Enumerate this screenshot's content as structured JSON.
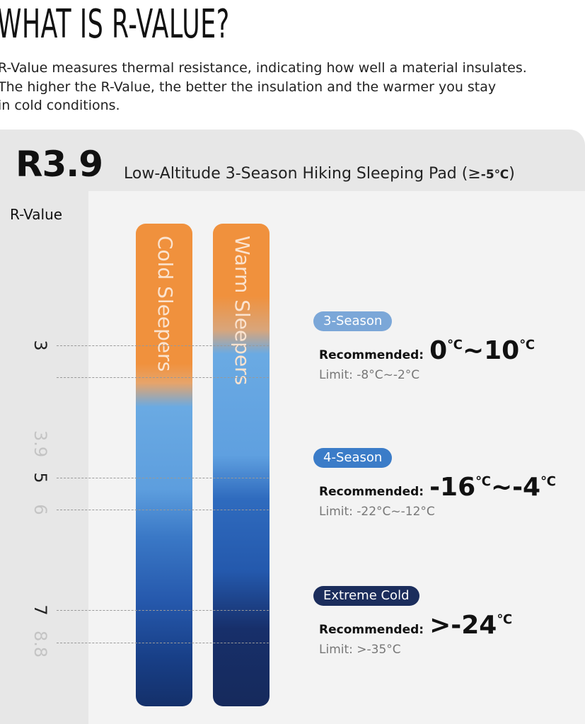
{
  "header": {
    "title": "WHAT IS R-VALUE?",
    "lines": [
      "R-Value measures thermal resistance, indicating how well a material insulates.",
      "The higher the R-Value, the better the insulation and the warmer you stay",
      "in cold conditions."
    ]
  },
  "card": {
    "badge": "R3.9",
    "subtitle": "Low-Altitude 3-Season Hiking Sleeping Pad (≥",
    "subtitle_temp": "-5℃",
    "subtitle_end": ")",
    "axis_label": "R-Value",
    "ticks": [
      {
        "text": "3",
        "pos": 488,
        "faint": false
      },
      {
        "text": "3.9",
        "pos": 625,
        "faint": true
      },
      {
        "text": "5",
        "pos": 675,
        "faint": false
      },
      {
        "text": "6",
        "pos": 720,
        "faint": true
      },
      {
        "text": "7",
        "pos": 862,
        "faint": false
      },
      {
        "text": "8.8",
        "pos": 908,
        "faint": true
      }
    ],
    "bars": [
      "Cold Sleepers",
      "Warm Sleepers"
    ],
    "zones": [
      {
        "tag": "3-Season",
        "recommended_label": "Recommended:",
        "recommended": "0℃~10℃",
        "limit": "Limit: -8°C~-2°C"
      },
      {
        "tag": "4-Season",
        "recommended_label": "Recommended:",
        "recommended": "-16℃~-4℃",
        "limit": "Limit: -22°C~-12°C"
      },
      {
        "tag": "Extreme Cold",
        "recommended_label": "Recommended:",
        "recommended": ">-24℃",
        "limit": "Limit: >-35°C"
      }
    ]
  }
}
